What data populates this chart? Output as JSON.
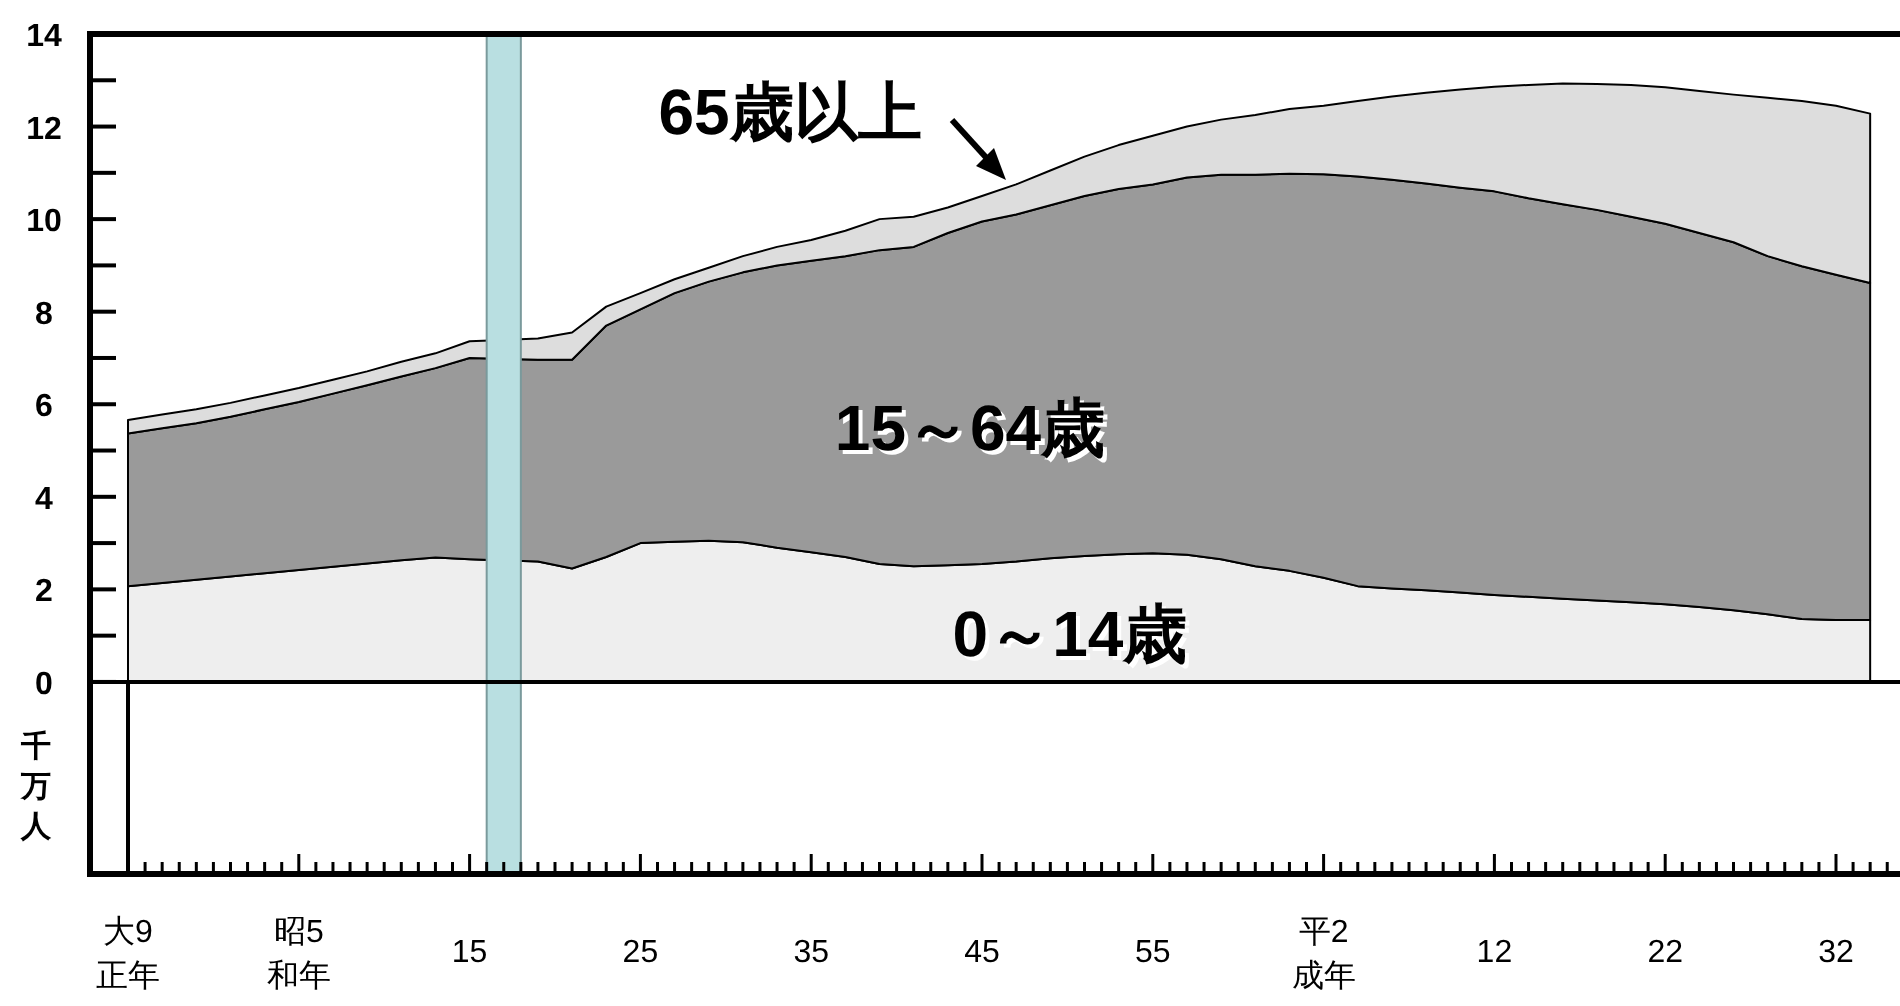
{
  "chart_data": {
    "type": "area",
    "stacked": true,
    "ylabel": "千万人",
    "categories": [
      "大9\n正年",
      null,
      null,
      null,
      null,
      "昭5\n和年",
      null,
      null,
      null,
      null,
      "15",
      null,
      null,
      null,
      null,
      "25",
      null,
      null,
      null,
      null,
      "35",
      null,
      null,
      null,
      null,
      "45",
      null,
      null,
      null,
      null,
      "55",
      null,
      null,
      null,
      null,
      "平2\n成年",
      null,
      null,
      null,
      null,
      "12",
      null,
      null,
      null,
      null,
      "22",
      null,
      null,
      null,
      null,
      "32",
      null
    ],
    "series": [
      {
        "name": "0～14歳",
        "color": "#eeeeee",
        "values": [
          2.07,
          2.14,
          2.21,
          2.28,
          2.35,
          2.42,
          2.49,
          2.56,
          2.63,
          2.69,
          2.65,
          null,
          2.6,
          2.45,
          2.7,
          3.0,
          3.03,
          3.05,
          3.02,
          2.9,
          2.8,
          2.7,
          2.55,
          2.5,
          2.52,
          2.55,
          2.6,
          2.67,
          2.72,
          2.76,
          2.78,
          2.75,
          2.65,
          2.5,
          2.4,
          2.25,
          2.07,
          2.02,
          1.98,
          1.93,
          1.88,
          1.84,
          1.8,
          1.76,
          1.72,
          1.68,
          1.62,
          1.55,
          1.46,
          1.36,
          1.34,
          1.34
        ]
      },
      {
        "name": "15～64歳",
        "color": "#9a9a9a",
        "values": [
          3.3,
          3.34,
          3.38,
          3.45,
          3.54,
          3.63,
          3.74,
          3.85,
          3.97,
          4.09,
          4.35,
          null,
          4.36,
          4.51,
          5.0,
          5.05,
          5.37,
          5.6,
          5.83,
          6.1,
          6.3,
          6.5,
          6.78,
          6.9,
          7.18,
          7.4,
          7.5,
          7.63,
          7.78,
          7.89,
          7.97,
          8.15,
          8.31,
          8.46,
          8.58,
          8.72,
          8.85,
          8.83,
          8.79,
          8.75,
          8.72,
          8.61,
          8.52,
          8.44,
          8.33,
          8.22,
          8.08,
          7.95,
          7.74,
          7.62,
          7.46,
          7.28
        ]
      },
      {
        "name": "65歳以上",
        "color": "#dddddd",
        "values": [
          0.29,
          0.3,
          0.3,
          0.3,
          0.3,
          0.3,
          0.3,
          0.3,
          0.32,
          0.32,
          0.36,
          null,
          0.46,
          0.59,
          0.41,
          0.35,
          0.3,
          0.3,
          0.35,
          0.4,
          0.45,
          0.55,
          0.67,
          0.65,
          0.55,
          0.55,
          0.65,
          0.75,
          0.85,
          0.95,
          1.05,
          1.1,
          1.19,
          1.29,
          1.4,
          1.48,
          1.63,
          1.8,
          1.96,
          2.12,
          2.26,
          2.45,
          2.61,
          2.72,
          2.85,
          2.95,
          3.07,
          3.19,
          3.42,
          3.57,
          3.65,
          3.66
        ]
      }
    ],
    "ylim": [
      -4.15,
      14
    ],
    "yticks": [
      0,
      {
        "value": 1,
        "label": null
      },
      2,
      {
        "value": 3,
        "label": null
      },
      4,
      {
        "value": 5,
        "label": null
      },
      6,
      {
        "value": 7,
        "label": null
      },
      8,
      {
        "value": 9,
        "label": null
      },
      10,
      {
        "value": 11,
        "label": null
      },
      12,
      {
        "value": 13,
        "label": null
      },
      14
    ],
    "ref_lines": [
      {
        "axis": "y",
        "value": 0
      }
    ]
  }
}
